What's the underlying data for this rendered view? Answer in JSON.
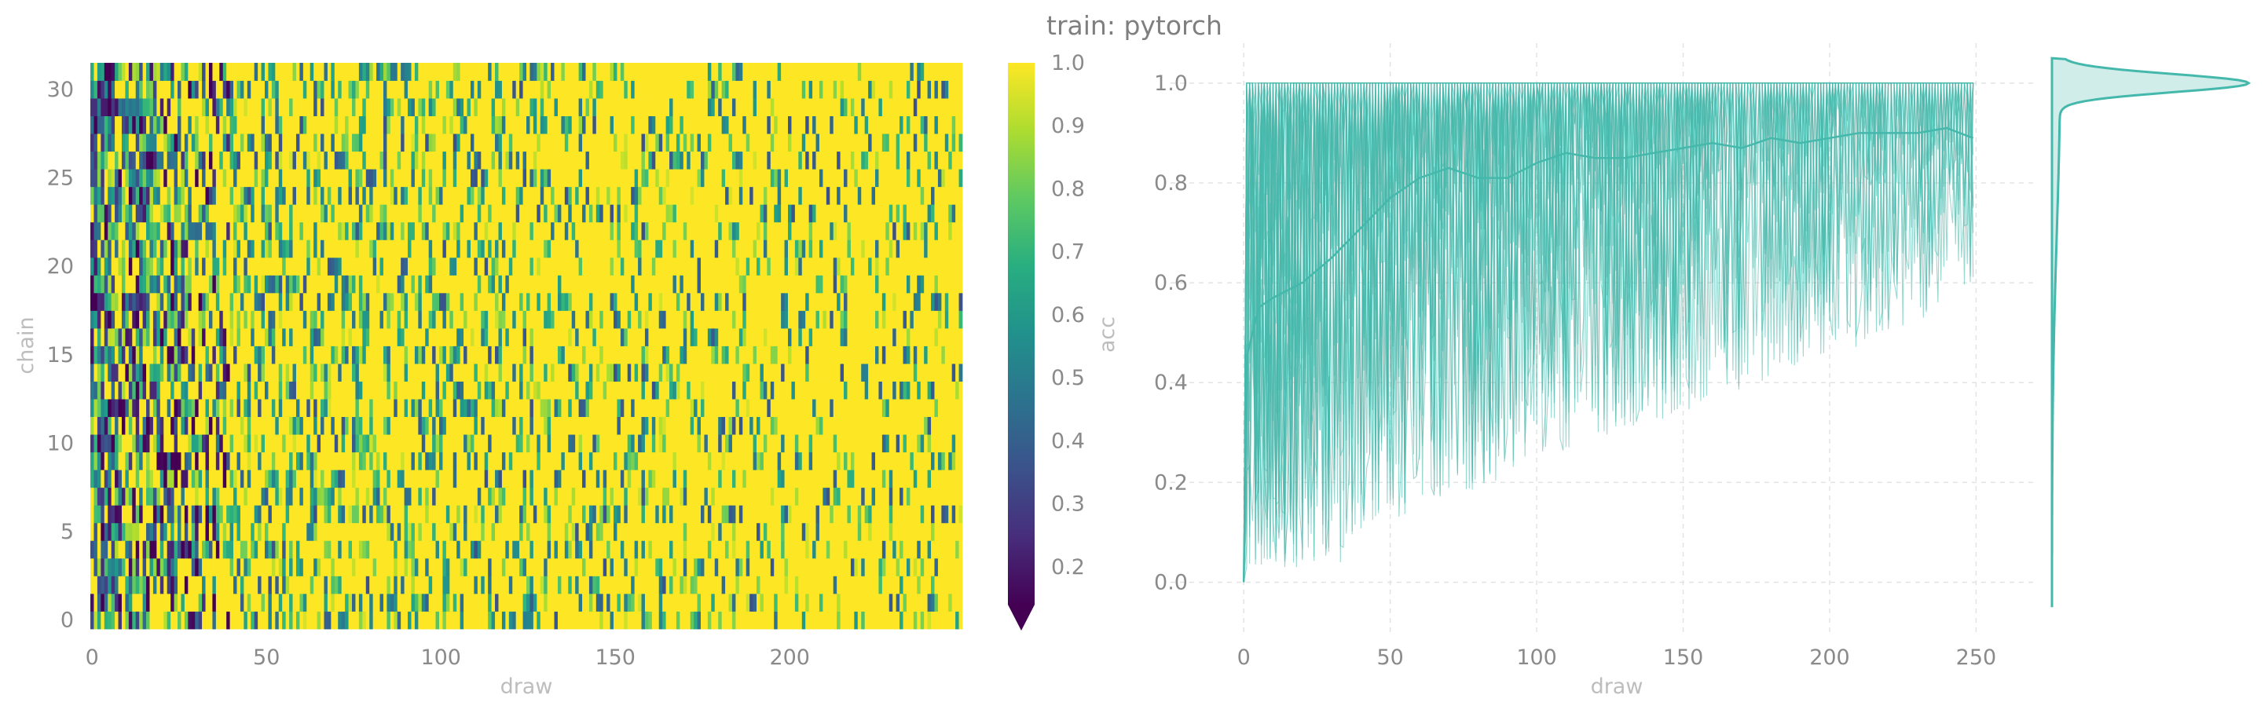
{
  "figure": {
    "title": "train: pytorch"
  },
  "chart_data": [
    {
      "type": "heatmap",
      "xlabel": "draw",
      "ylabel": "chain",
      "x_ticks": [
        "0",
        "50",
        "100",
        "150",
        "200"
      ],
      "y_ticks": [
        "0",
        "5",
        "10",
        "15",
        "20",
        "25",
        "30"
      ],
      "x_range": [
        0,
        249
      ],
      "y_range": [
        0,
        31
      ],
      "n_draws": 250,
      "n_chains": 32,
      "colormap": "viridis",
      "colorbar": {
        "label": "acc",
        "ticks": [
          "1.0",
          "0.9",
          "0.8",
          "0.7",
          "0.6",
          "0.5",
          "0.4",
          "0.3",
          "0.2"
        ],
        "range": [
          0.14,
          1.0
        ],
        "extend": "min"
      },
      "trend": "low acceptance (dark purple) for draws 0-40, mostly high (yellow) thereafter"
    },
    {
      "type": "line",
      "xlabel": "draw",
      "ylabel": "",
      "x_ticks": [
        "0",
        "50",
        "100",
        "150",
        "200",
        "250"
      ],
      "y_ticks": [
        "1.0",
        "0.8",
        "0.6",
        "0.4",
        "0.2",
        "0.0"
      ],
      "xlim": [
        -25,
        270
      ],
      "ylim": [
        -0.1,
        1.08
      ],
      "grid": true,
      "color": "#45b8ac",
      "series": [
        {
          "name": "",
          "description": "per-chain traces, 32 chains",
          "style": "thin lines"
        },
        {
          "name": "",
          "description": "mean across chains",
          "x": [
            0,
            1,
            5,
            10,
            20,
            30,
            40,
            50,
            60,
            70,
            80,
            90,
            100,
            110,
            120,
            130,
            140,
            150,
            160,
            170,
            180,
            190,
            200,
            210,
            220,
            230,
            240,
            249
          ],
          "y": [
            0.0,
            0.45,
            0.55,
            0.57,
            0.6,
            0.65,
            0.71,
            0.77,
            0.81,
            0.83,
            0.81,
            0.81,
            0.84,
            0.86,
            0.85,
            0.85,
            0.86,
            0.87,
            0.88,
            0.87,
            0.89,
            0.88,
            0.89,
            0.9,
            0.9,
            0.9,
            0.91,
            0.89
          ]
        }
      ],
      "marginal_density": {
        "orientation": "vertical",
        "description": "kernel density of acc values, peak at 1.0"
      }
    }
  ]
}
